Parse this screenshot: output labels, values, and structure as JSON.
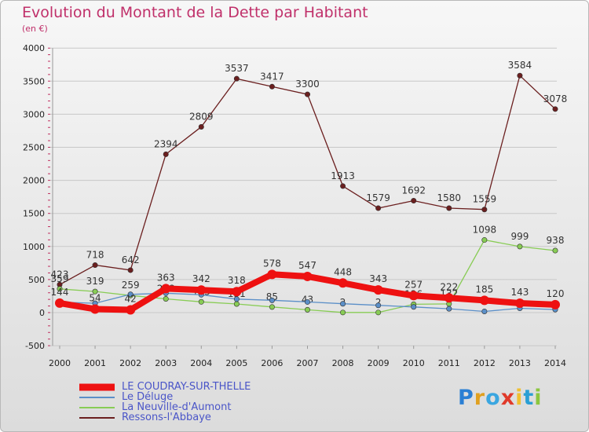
{
  "title": "Evolution du Montant de la Dette par Habitant",
  "subtitle": "(en €)",
  "logo_text": "Proxiti",
  "colors": {
    "title": "#c0306a",
    "grid": "#c8c8c8",
    "legend_text": "#4a55c8"
  },
  "chart_data": {
    "type": "line",
    "title": "Evolution du Montant de la Dette par Habitant",
    "subtitle": "(en €)",
    "x": [
      "2000",
      "2001",
      "2002",
      "2003",
      "2004",
      "2005",
      "2006",
      "2007",
      "2008",
      "2009",
      "2010",
      "2011",
      "2012",
      "2013",
      "2014"
    ],
    "ylim": [
      -500,
      4000
    ],
    "yticks": [
      -500,
      0,
      500,
      1000,
      1500,
      2000,
      2500,
      3000,
      3500,
      4000
    ],
    "grid": true,
    "legend_position": "bottom-left",
    "series": [
      {
        "name": "LE COUDRAY-SUR-THELLE",
        "color": "#ee1111",
        "values": [
          144,
          54,
          42,
          363,
          342,
          318,
          578,
          547,
          448,
          343,
          257,
          222,
          185,
          143,
          120
        ],
        "labels_shown": true,
        "emphasis": true
      },
      {
        "name": "Le Déluge",
        "color": "#5b8fc8",
        "values": [
          159,
          141,
          276,
          293,
          270,
          204,
          186,
          161,
          134,
          110,
          86,
          58,
          18,
          65,
          46
        ],
        "labels_shown": false
      },
      {
        "name": "La Neuville-d'Aumont",
        "color": "#88cc55",
        "values": [
          359,
          319,
          259,
          208,
          163,
          131,
          85,
          43,
          2,
          2,
          126,
          132,
          1098,
          999,
          938
        ],
        "labels_shown": true
      },
      {
        "name": "Ressons-l'Abbaye",
        "color": "#6b1f1f",
        "values": [
          423,
          718,
          642,
          2394,
          2809,
          3537,
          3417,
          3300,
          1913,
          1579,
          1692,
          1580,
          1559,
          3584,
          3078
        ],
        "labels_shown": true
      }
    ]
  }
}
